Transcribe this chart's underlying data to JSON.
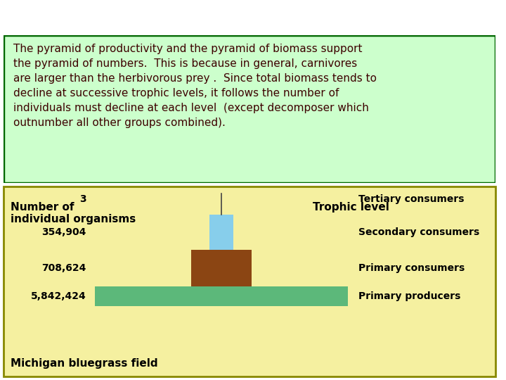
{
  "top_panel_bg": "#f5f0a0",
  "bottom_panel_bg": "#ccffcc",
  "top_border_color": "#888800",
  "bottom_border_color": "#006600",
  "header_left_line1": "Number of",
  "header_left_line2": "individual organisms",
  "header_right": "Trophic level",
  "footer_label": "Michigan bluegrass field",
  "counts": [
    "3",
    "354,904",
    "708,624",
    "5,842,424"
  ],
  "trophic_levels": [
    "Tertiary consumers",
    "Secondary consumers",
    "Primary consumers",
    "Primary producers"
  ],
  "bar_colors": [
    "#87ceeb",
    "#8b4513",
    "#5cb87a"
  ],
  "body_text": "The pyramid of productivity and the pyramid of biomass support\nthe pyramid of numbers.  This is because in general, carnivores\nare larger than the herbivorous prey .  Since total biomass tends to\ndecline at successive trophic levels, it follows the number of\nindividuals must decline at each level  (except decomposer which\noutnumber all other groups combined).",
  "body_text_color": "#3d0000",
  "header_color": "#000000"
}
